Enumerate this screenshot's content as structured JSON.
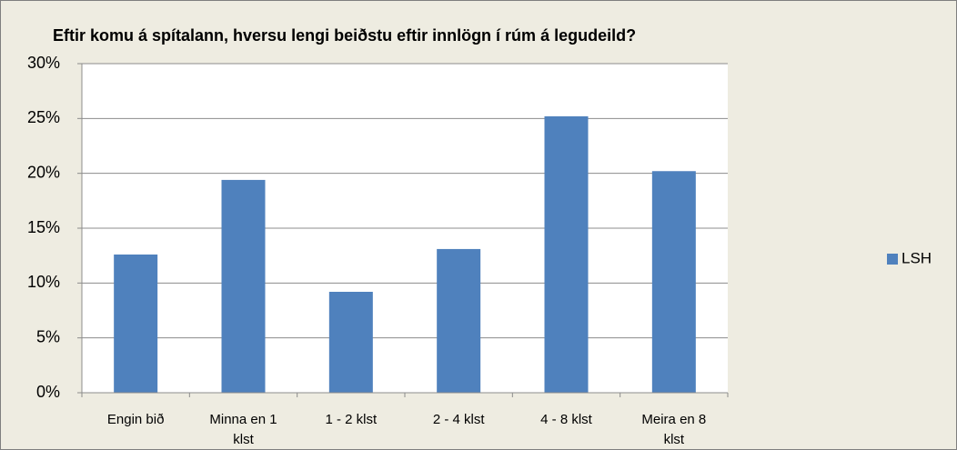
{
  "chart_data": {
    "type": "bar",
    "title": "Eftir komu á spítalann, hversu lengi beiðstu eftir innlögn í rúm á legudeild?",
    "categories": [
      "Engin bið",
      "Minna en 1 klst",
      "1 - 2 klst",
      "2 - 4 klst",
      "4 -  8 klst",
      "Meira en 8 klst"
    ],
    "series": [
      {
        "name": "LSH",
        "color": "#4f81bd",
        "values": [
          12.6,
          19.4,
          9.2,
          13.1,
          25.2,
          20.2
        ]
      }
    ],
    "ylim": [
      0,
      30
    ],
    "yticks": [
      {
        "value": 0,
        "label": "0%"
      },
      {
        "value": 5,
        "label": "5%"
      },
      {
        "value": 10,
        "label": "10%"
      },
      {
        "value": 15,
        "label": "15%"
      },
      {
        "value": 20,
        "label": "20%"
      },
      {
        "value": 25,
        "label": "25%"
      },
      {
        "value": 30,
        "label": "30%"
      }
    ],
    "grid": true,
    "legend": "right"
  }
}
